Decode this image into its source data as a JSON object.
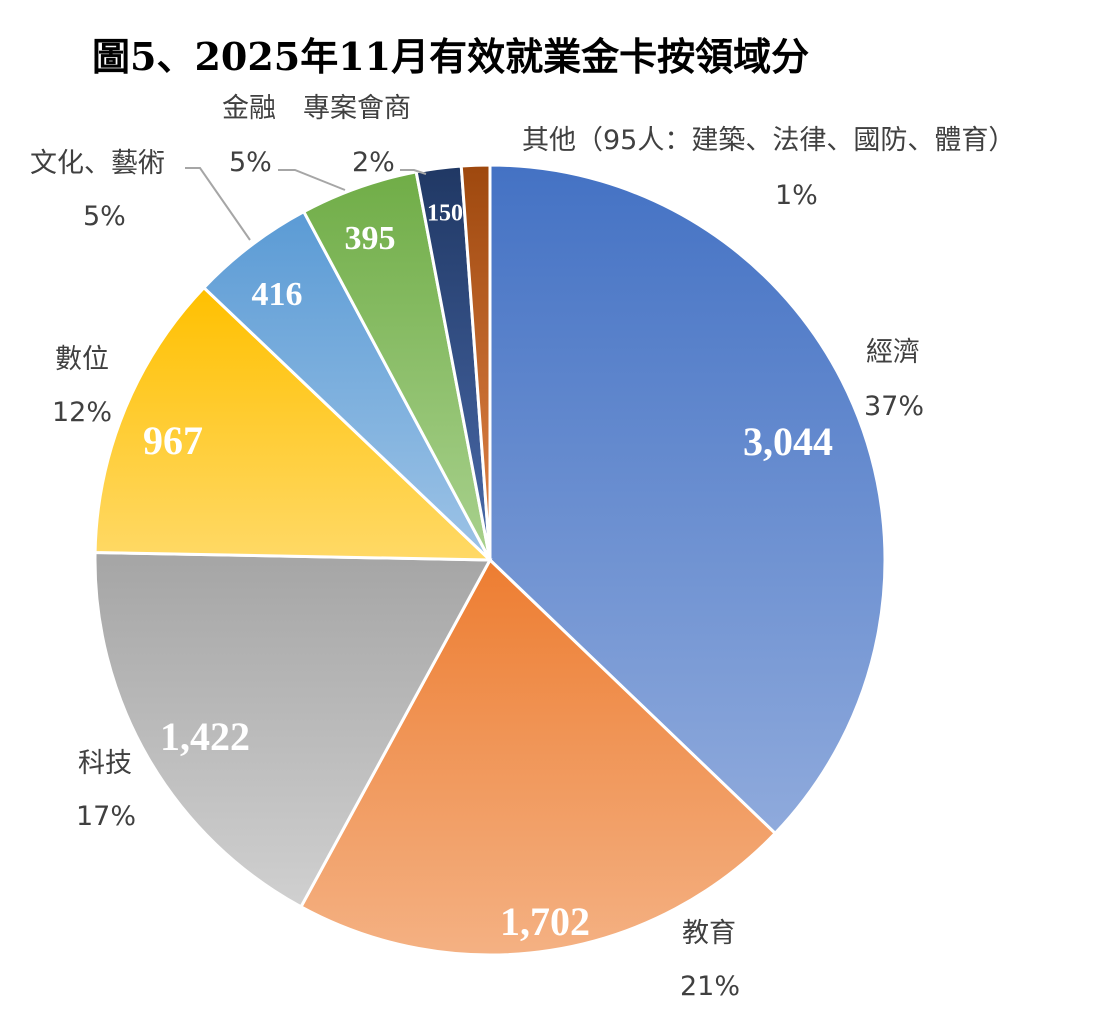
{
  "chart_data": {
    "type": "pie",
    "title": "圖5、2025年11月有效就業金卡按領域分",
    "slices": [
      {
        "label": "經濟",
        "value": 3044,
        "value_text": "3,044",
        "percent": "37%",
        "color_top": "#4472c4",
        "color_bottom": "#8faadc"
      },
      {
        "label": "教育",
        "value": 1702,
        "value_text": "1,702",
        "percent": "21%",
        "color_top": "#ed7d31",
        "color_bottom": "#f4b183"
      },
      {
        "label": "科技",
        "value": 1422,
        "value_text": "1,422",
        "percent": "17%",
        "color_top": "#a5a5a5",
        "color_bottom": "#d0d0d0"
      },
      {
        "label": "數位",
        "value": 967,
        "value_text": "967",
        "percent": "12%",
        "color_top": "#ffc000",
        "color_bottom": "#ffd966"
      },
      {
        "label": "文化、藝術",
        "value": 416,
        "value_text": "416",
        "percent": "5%",
        "color_top": "#5b9bd5",
        "color_bottom": "#9dc3e6"
      },
      {
        "label": "金融　專案會商",
        "value": 395,
        "value_text": "395",
        "percent": "5%",
        "color_top": "#70ad47",
        "color_bottom": "#a9d18e"
      },
      {
        "label": "",
        "value": 150,
        "value_text": "150",
        "percent": "2%",
        "color_top": "#203864",
        "color_bottom": "#4a6aaa"
      },
      {
        "label": "其他（95人：建築、法律、國防、體育）",
        "value": 95,
        "value_text": "",
        "percent": "1%",
        "color_top": "#9e480e",
        "color_bottom": "#e2854a"
      }
    ]
  }
}
